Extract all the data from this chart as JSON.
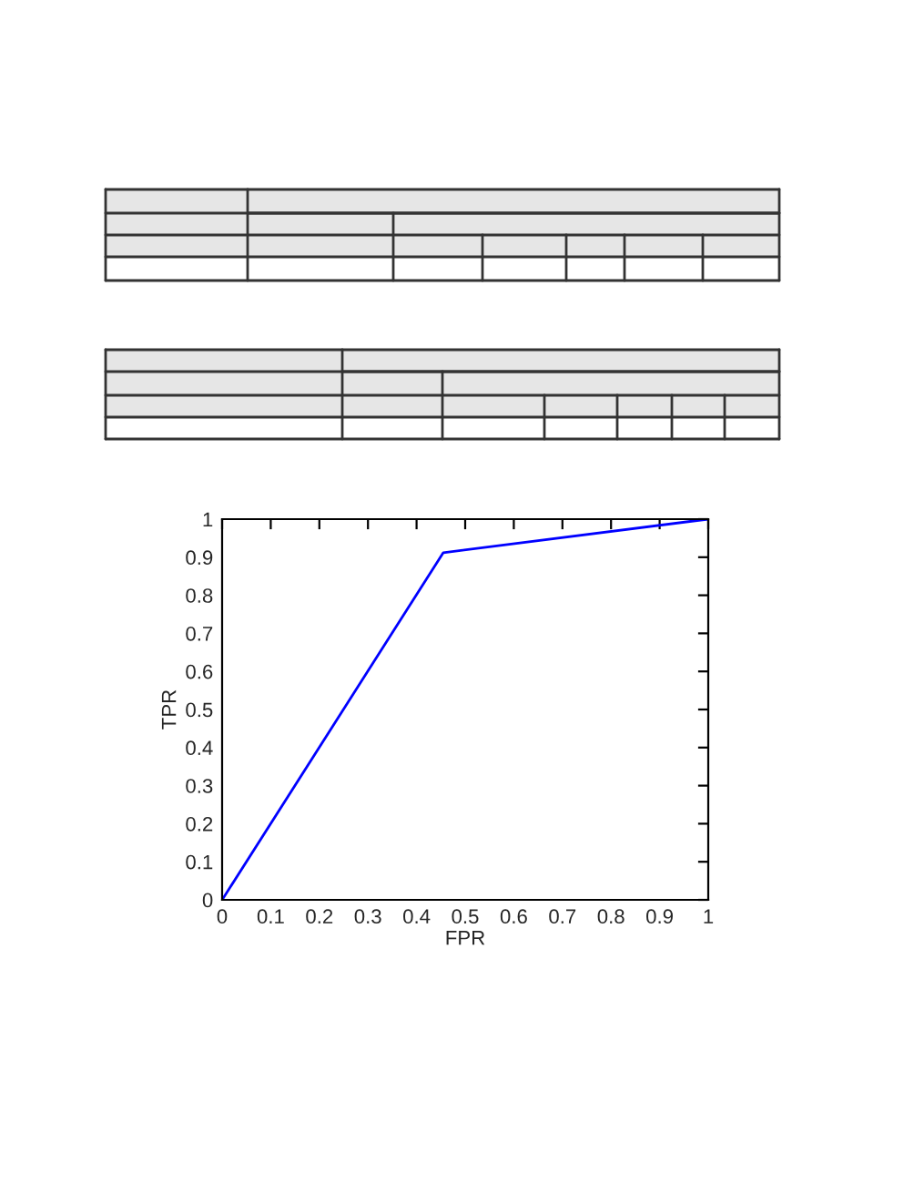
{
  "chart_data": {
    "type": "line",
    "xlabel": "FPR",
    "ylabel": "TPR",
    "x": [
      0,
      0.455,
      1
    ],
    "series": [
      {
        "color": "#0000ff",
        "values": [
          0,
          0.912,
          1
        ]
      }
    ],
    "xlim": [
      0,
      1
    ],
    "ylim": [
      0,
      1
    ],
    "xticks": [
      0,
      0.1,
      0.2,
      0.3,
      0.4,
      0.5,
      0.6,
      0.7,
      0.8,
      0.9,
      1
    ],
    "yticks": [
      0,
      0.1,
      0.2,
      0.3,
      0.4,
      0.5,
      0.6,
      0.7,
      0.8,
      0.9,
      1
    ],
    "grid": false,
    "legend": false,
    "marker": "none",
    "line_style": "solid"
  }
}
